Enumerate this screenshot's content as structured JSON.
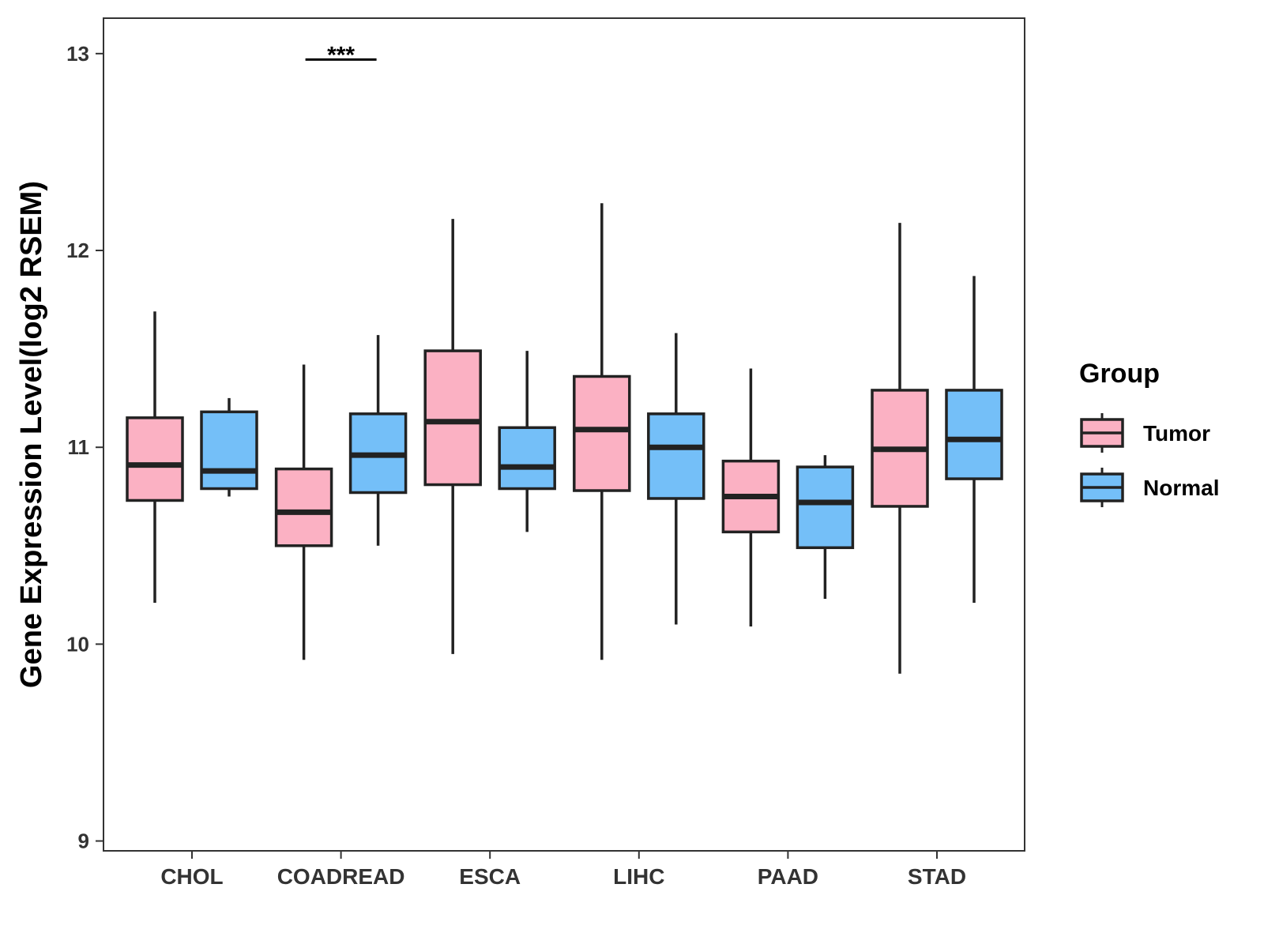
{
  "chart_data": {
    "type": "boxplot",
    "title": "",
    "xlabel": "",
    "ylabel": "Gene Expression Level(log2 RSEM)",
    "ylim": [
      8.95,
      13.18
    ],
    "yticks": [
      9,
      10,
      11,
      12,
      13
    ],
    "grid": false,
    "legend": {
      "title": "Group",
      "position": "right",
      "entries": [
        {
          "name": "Tumor",
          "color": "#FBB1C3"
        },
        {
          "name": "Normal",
          "color": "#74BFF8"
        }
      ]
    },
    "categories": [
      "CHOL",
      "COADREAD",
      "ESCA",
      "LIHC",
      "PAAD",
      "STAD"
    ],
    "series": [
      {
        "name": "Tumor",
        "color": "#FBB1C3",
        "boxes": [
          {
            "whisker_low": 10.21,
            "q1": 10.73,
            "median": 10.91,
            "q3": 11.15,
            "whisker_high": 11.69
          },
          {
            "whisker_low": 9.92,
            "q1": 10.5,
            "median": 10.67,
            "q3": 10.89,
            "whisker_high": 11.42
          },
          {
            "whisker_low": 9.95,
            "q1": 10.81,
            "median": 11.13,
            "q3": 11.49,
            "whisker_high": 12.16
          },
          {
            "whisker_low": 9.92,
            "q1": 10.78,
            "median": 11.09,
            "q3": 11.36,
            "whisker_high": 12.24
          },
          {
            "whisker_low": 10.09,
            "q1": 10.57,
            "median": 10.75,
            "q3": 10.93,
            "whisker_high": 11.4
          },
          {
            "whisker_low": 9.85,
            "q1": 10.7,
            "median": 10.99,
            "q3": 11.29,
            "whisker_high": 12.14
          }
        ]
      },
      {
        "name": "Normal",
        "color": "#74BFF8",
        "boxes": [
          {
            "whisker_low": 10.75,
            "q1": 10.79,
            "median": 10.88,
            "q3": 11.18,
            "whisker_high": 11.25
          },
          {
            "whisker_low": 10.5,
            "q1": 10.77,
            "median": 10.96,
            "q3": 11.17,
            "whisker_high": 11.57
          },
          {
            "whisker_low": 10.57,
            "q1": 10.79,
            "median": 10.9,
            "q3": 11.1,
            "whisker_high": 11.49
          },
          {
            "whisker_low": 10.1,
            "q1": 10.74,
            "median": 11.0,
            "q3": 11.17,
            "whisker_high": 11.58
          },
          {
            "whisker_low": 10.23,
            "q1": 10.49,
            "median": 10.72,
            "q3": 10.9,
            "whisker_high": 10.96
          },
          {
            "whisker_low": 10.21,
            "q1": 10.84,
            "median": 11.04,
            "q3": 11.29,
            "whisker_high": 11.87
          }
        ]
      }
    ],
    "annotations": [
      {
        "category": "COADREAD",
        "text": "***",
        "y": 12.97
      }
    ]
  }
}
